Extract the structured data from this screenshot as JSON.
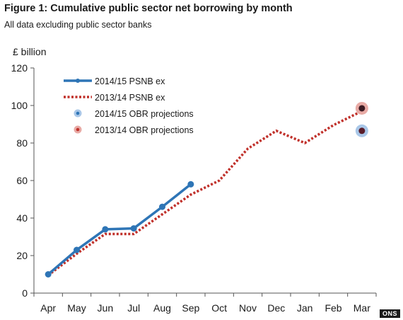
{
  "header": {
    "title": "Figure 1: Cumulative public sector net borrowing by month",
    "subtitle": "All data excluding public sector banks"
  },
  "footer": {
    "badge": "ONS"
  },
  "chart_data": {
    "type": "line",
    "title": "Figure 1: Cumulative public sector net borrowing by month",
    "subtitle": "All data excluding public sector banks",
    "ylabel": "£ billion",
    "xlabel": "",
    "categories": [
      "Apr",
      "May",
      "Jun",
      "Jul",
      "Aug",
      "Sep",
      "Oct",
      "Nov",
      "Dec",
      "Jan",
      "Feb",
      "Mar"
    ],
    "ylim": [
      0,
      120
    ],
    "yticks": [
      0,
      20,
      40,
      60,
      80,
      100,
      120
    ],
    "grid": false,
    "legend_position": "top-left",
    "series": [
      {
        "name": "2014/15 PSNB ex",
        "style": "solid-markers",
        "color": "#2e75b6",
        "values": [
          10,
          23,
          34,
          34.5,
          46,
          58,
          null,
          null,
          null,
          null,
          null,
          null
        ]
      },
      {
        "name": "2013/14 PSNB ex",
        "style": "dotted",
        "color": "#c0302a",
        "values": [
          9.5,
          21,
          31.5,
          31.5,
          42,
          52.5,
          60,
          77,
          86.5,
          80,
          89.5,
          97
        ]
      },
      {
        "name": "2014/15 OBR projections",
        "style": "point",
        "color": "#2e75b6",
        "halo": "#a9c7e8",
        "values": [
          null,
          null,
          null,
          null,
          null,
          null,
          null,
          null,
          null,
          null,
          null,
          86.5
        ]
      },
      {
        "name": "2013/14 OBR projections",
        "style": "point",
        "color": "#c0302a",
        "halo": "#e8aaa5",
        "values": [
          null,
          null,
          null,
          null,
          null,
          null,
          null,
          null,
          null,
          null,
          null,
          98.5
        ]
      }
    ]
  }
}
